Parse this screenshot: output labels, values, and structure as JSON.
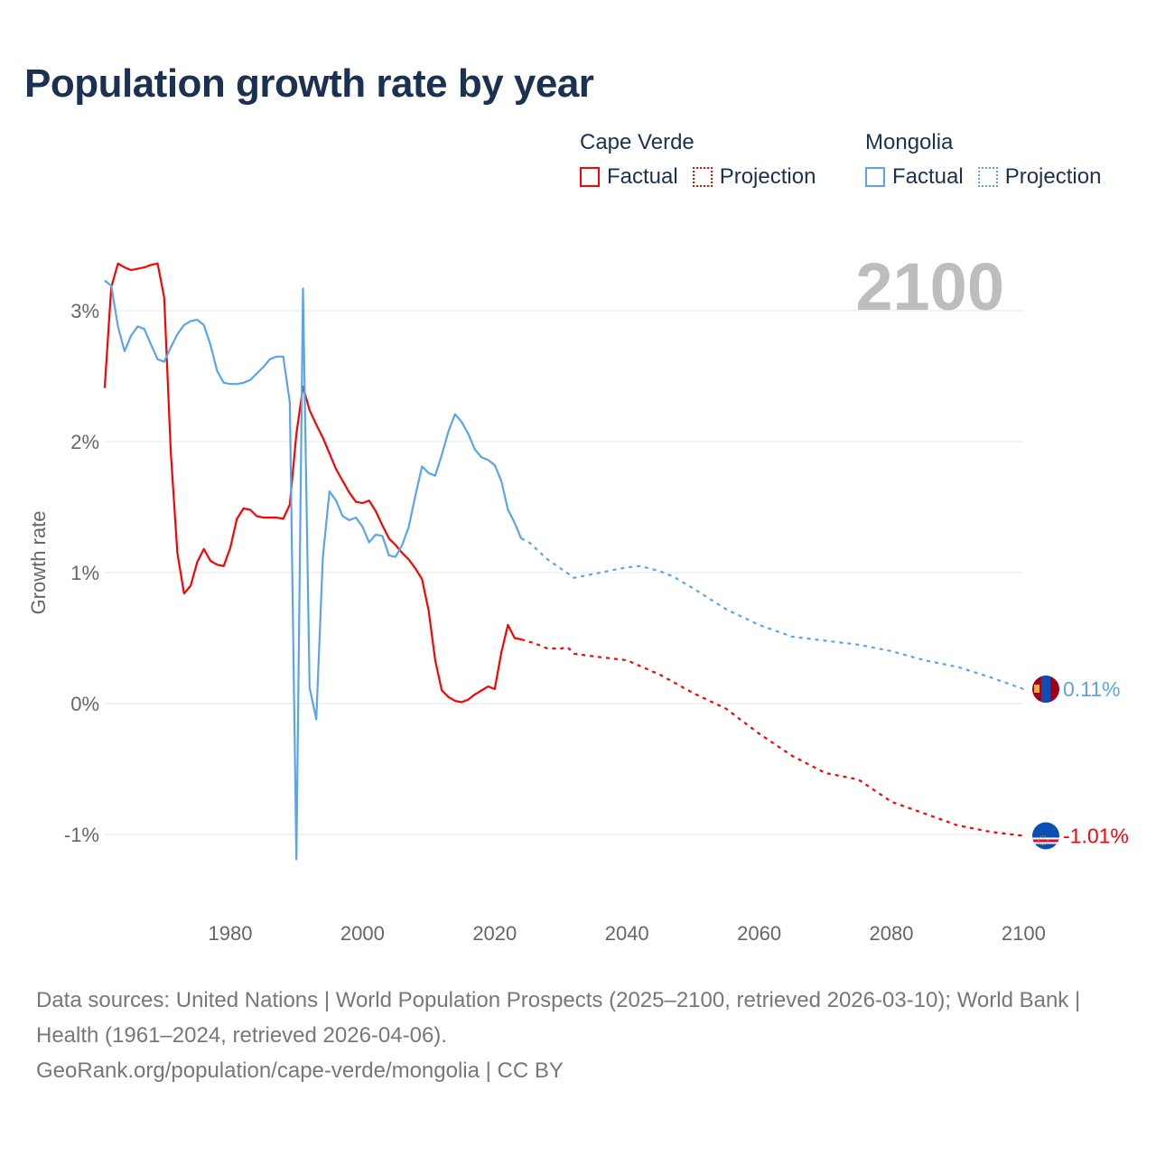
{
  "title": "Population growth rate by year",
  "legend": {
    "groups": [
      {
        "name": "Cape Verde",
        "color": "#ff0000",
        "factual": "Factual",
        "projection": "Projection"
      },
      {
        "name": "Mongolia",
        "color": "#5aa5ea",
        "factual": "Factual",
        "projection": "Projection"
      }
    ]
  },
  "footer": {
    "sources": "Data sources: United Nations | World Population Prospects (2025–2100, retrieved 2026-03-10); World Bank | Health (1961–2024, retrieved 2026-04-06).",
    "credit": "GeoRank.org/population/cape-verde/mongolia | CC BY"
  },
  "chart_data": {
    "type": "line",
    "title": "Population growth rate by year",
    "ylabel": "Growth rate",
    "xlabel": "",
    "year_label": "2100",
    "xlim": [
      1961,
      2100
    ],
    "ylim": [
      -1.5,
      3.5
    ],
    "x_ticks": [
      1980,
      2000,
      2020,
      2040,
      2060,
      2080,
      2100
    ],
    "y_ticks": [
      {
        "v": -1,
        "label": "-1%"
      },
      {
        "v": 0,
        "label": "0%"
      },
      {
        "v": 1,
        "label": "1%"
      },
      {
        "v": 2,
        "label": "2%"
      },
      {
        "v": 3,
        "label": "3%"
      }
    ],
    "grid": true,
    "series": [
      {
        "name": "Cape Verde",
        "color": "#ff0000",
        "end_label": "-1.01%",
        "factual": {
          "start_year": 1961,
          "values": [
            2.41,
            3.18,
            3.36,
            3.33,
            3.31,
            3.32,
            3.33,
            3.35,
            3.36,
            3.1,
            1.92,
            1.15,
            0.84,
            0.9,
            1.08,
            1.18,
            1.09,
            1.06,
            1.05,
            1.19,
            1.41,
            1.49,
            1.48,
            1.43,
            1.42,
            1.42,
            1.42,
            1.41,
            1.52,
            2.06,
            2.42,
            2.24,
            2.13,
            2.03,
            1.91,
            1.79,
            1.7,
            1.61,
            1.54,
            1.53,
            1.55,
            1.47,
            1.36,
            1.26,
            1.21,
            1.15,
            1.1,
            1.03,
            0.95,
            0.71,
            0.33,
            0.1,
            0.05,
            0.02,
            0.01,
            0.03,
            0.07,
            0.1,
            0.13,
            0.11,
            0.39,
            0.6,
            0.5,
            0.49
          ]
        },
        "projection": {
          "x": [
            2024,
            2026,
            2028,
            2030,
            2031,
            2032,
            2035,
            2040,
            2045,
            2050,
            2055,
            2060,
            2065,
            2070,
            2075,
            2080,
            2085,
            2090,
            2095,
            2100
          ],
          "values": [
            0.49,
            0.46,
            0.42,
            0.42,
            0.43,
            0.38,
            0.36,
            0.33,
            0.22,
            0.08,
            -0.04,
            -0.23,
            -0.4,
            -0.53,
            -0.58,
            -0.75,
            -0.84,
            -0.93,
            -0.98,
            -1.01
          ]
        }
      },
      {
        "name": "Mongolia",
        "color": "#5aa5ea",
        "end_label": "0.11%",
        "factual": {
          "start_year": 1961,
          "values": [
            3.23,
            3.19,
            2.88,
            2.69,
            2.81,
            2.88,
            2.86,
            2.74,
            2.63,
            2.61,
            2.72,
            2.82,
            2.89,
            2.92,
            2.93,
            2.89,
            2.74,
            2.54,
            2.45,
            2.44,
            2.44,
            2.45,
            2.47,
            2.52,
            2.57,
            2.63,
            2.65,
            2.65,
            2.3,
            -1.19,
            3.17,
            0.12,
            -0.12,
            1.12,
            1.62,
            1.55,
            1.43,
            1.4,
            1.42,
            1.35,
            1.23,
            1.29,
            1.28,
            1.13,
            1.12,
            1.21,
            1.35,
            1.59,
            1.81,
            1.76,
            1.74,
            1.9,
            2.08,
            2.21,
            2.15,
            2.06,
            1.94,
            1.88,
            1.86,
            1.82,
            1.7,
            1.48,
            1.38,
            1.26
          ]
        },
        "projection": {
          "x": [
            2024,
            2025,
            2028,
            2030,
            2032,
            2035,
            2038,
            2040,
            2042,
            2045,
            2047,
            2050,
            2055,
            2060,
            2065,
            2070,
            2075,
            2080,
            2085,
            2090,
            2095,
            2100
          ],
          "values": [
            1.26,
            1.24,
            1.1,
            1.03,
            0.96,
            0.99,
            1.02,
            1.04,
            1.05,
            1.01,
            0.97,
            0.88,
            0.72,
            0.6,
            0.51,
            0.48,
            0.45,
            0.4,
            0.33,
            0.28,
            0.2,
            0.11
          ]
        }
      }
    ]
  }
}
